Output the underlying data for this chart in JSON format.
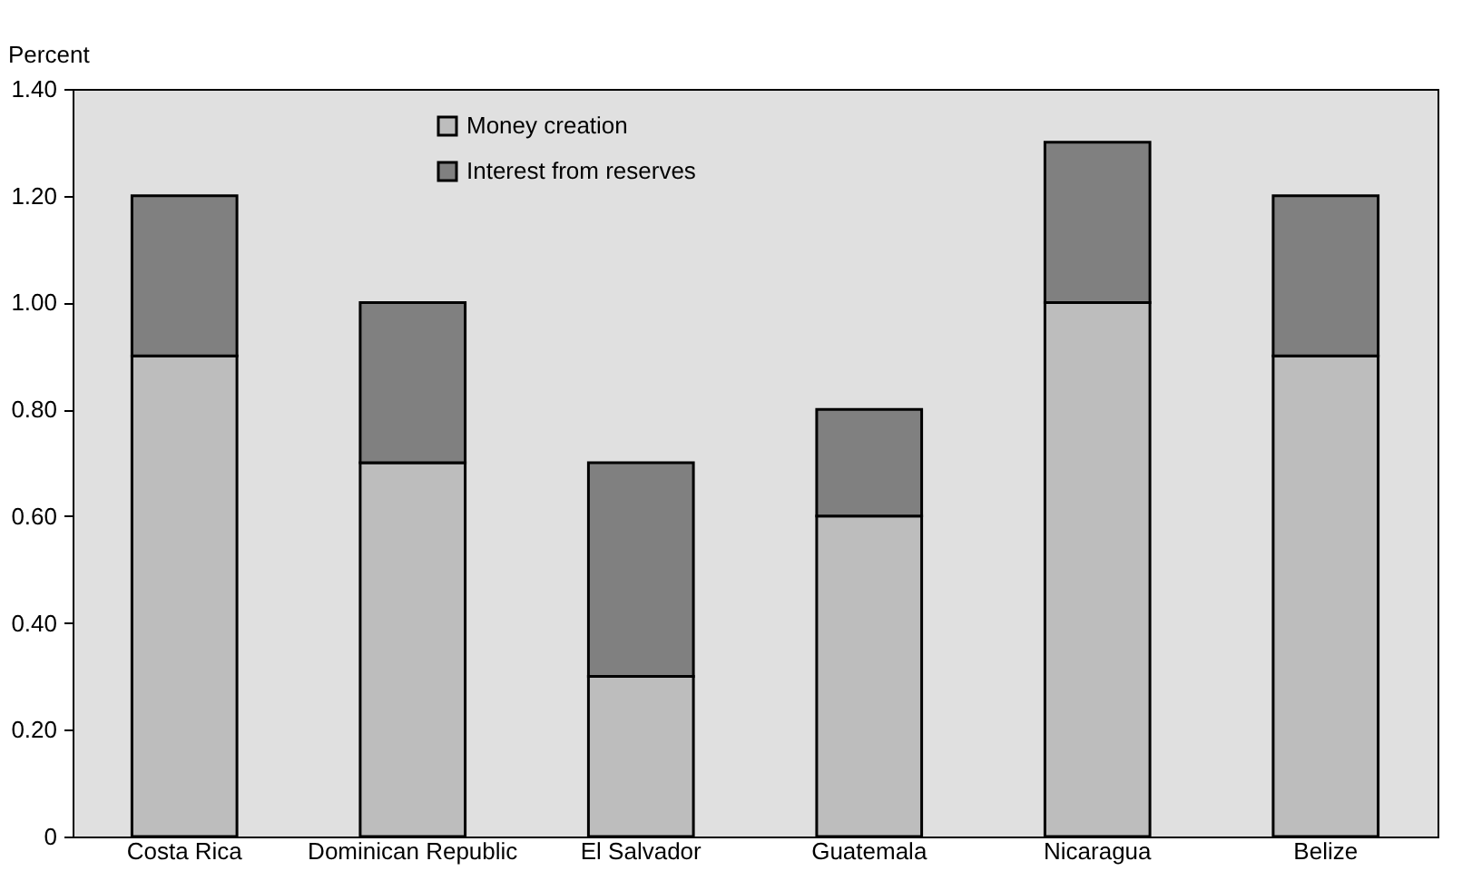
{
  "chart_data": {
    "type": "bar",
    "stacked": true,
    "ylabel": "Percent",
    "categories": [
      "Costa Rica",
      "Dominican Republic",
      "El Salvador",
      "Guatemala",
      "Nicaragua",
      "Belize"
    ],
    "series": [
      {
        "name": "Money creation",
        "color": "#bdbdbd",
        "values": [
          0.9,
          0.7,
          0.3,
          0.6,
          1.0,
          0.9
        ]
      },
      {
        "name": "Interest from reserves",
        "color": "#808080",
        "values": [
          0.3,
          0.3,
          0.4,
          0.2,
          0.3,
          0.3
        ]
      }
    ],
    "ylim": [
      0,
      1.4
    ],
    "yticks": [
      0,
      {
        "value": 0.2,
        "label": "0.20"
      },
      {
        "value": 0.4,
        "label": "0.40"
      },
      {
        "value": 0.6,
        "label": "0.60"
      },
      {
        "value": 0.8,
        "label": "0.80"
      },
      {
        "value": 1.0,
        "label": "1.00"
      },
      {
        "value": 1.2,
        "label": "1.20"
      },
      {
        "value": 1.4,
        "label": "1.40"
      }
    ],
    "legend": "top left",
    "grid": false
  }
}
